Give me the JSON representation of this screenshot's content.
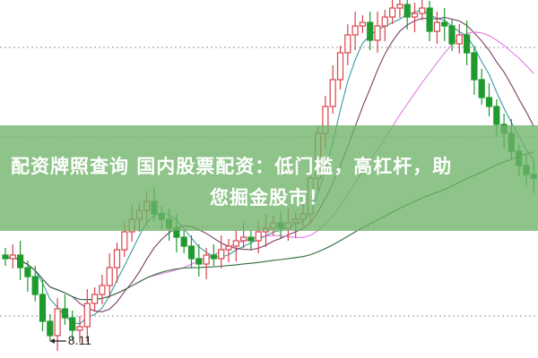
{
  "banner": {
    "line1": "配资牌照查询 国内股票配资：低门槛，高杠杆，助",
    "line2": "您掘金股市！"
  },
  "chart_data": {
    "type": "candlestick",
    "grid": "horizontal dotted",
    "close": [
      8.57,
      8.59,
      8.52,
      8.47,
      8.37,
      8.22,
      8.14,
      8.29,
      8.24,
      8.17,
      8.19,
      8.32,
      8.37,
      8.42,
      8.52,
      8.62,
      8.72,
      8.79,
      8.84,
      8.89,
      8.82,
      8.79,
      8.74,
      8.69,
      8.64,
      8.57,
      8.54,
      8.59,
      8.57,
      8.62,
      8.64,
      8.67,
      8.69,
      8.67,
      8.72,
      8.74,
      8.77,
      8.74,
      8.77,
      8.79,
      8.82,
      9.02,
      9.27,
      9.42,
      9.57,
      9.72,
      9.82,
      9.87,
      9.89,
      9.79,
      9.87,
      9.92,
      9.97,
      9.99,
      9.92,
      9.94,
      9.97,
      9.84,
      9.89,
      9.87,
      9.77,
      9.82,
      9.72,
      9.57,
      9.47,
      9.42,
      9.32,
      9.27,
      9.17,
      9.09,
      9.04,
      9.02
    ],
    "low_annotation": "8.11",
    "moving_averages": [
      5,
      10,
      20,
      60
    ],
    "colors": {
      "up": "#d9434b",
      "down": "#1f9a2e",
      "ma5": "#3a9aa0",
      "ma10": "#7a3a6a",
      "ma20": "#e07ee0",
      "ma60": "#2f6b3a",
      "banner": "#6eb469"
    }
  }
}
